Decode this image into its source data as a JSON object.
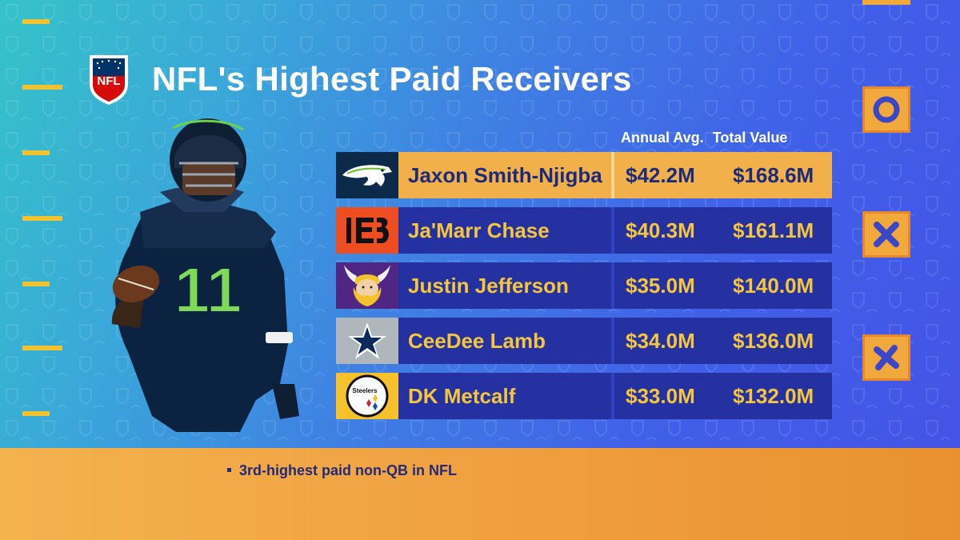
{
  "header": {
    "title": "NFL's Highest Paid Receivers",
    "logo_text": "NFL"
  },
  "columns": {
    "aav": "Annual Avg.",
    "total": "Total Value"
  },
  "rows": [
    {
      "team": "Seahawks",
      "logo_icon": "seahawks-logo-icon",
      "name": "Jaxon Smith-Njigba",
      "aav": "$42.2M",
      "total": "$168.6M",
      "highlight": true
    },
    {
      "team": "Bengals",
      "logo_icon": "bengals-logo-icon",
      "name": "Ja'Marr Chase",
      "aav": "$40.3M",
      "total": "$161.1M",
      "highlight": false
    },
    {
      "team": "Vikings",
      "logo_icon": "vikings-logo-icon",
      "name": "Justin Jefferson",
      "aav": "$35.0M",
      "total": "$140.0M",
      "highlight": false
    },
    {
      "team": "Cowboys",
      "logo_icon": "cowboys-logo-icon",
      "name": "CeeDee Lamb",
      "aav": "$34.0M",
      "total": "$136.0M",
      "highlight": false
    },
    {
      "team": "Steelers",
      "logo_icon": "steelers-logo-icon",
      "name": "DK Metcalf",
      "aav": "$33.0M",
      "total": "$132.0M",
      "highlight": false
    }
  ],
  "player_jersey_number": "11",
  "steelers_logo_text": "Steelers",
  "footer": {
    "bullet": "3rd-highest paid non-QB in NFL"
  },
  "colors": {
    "accent_gold": "#f4c640",
    "row_navy": "#2531a0",
    "highlight_orange": "#f1b04a",
    "seahawks_navy": "#0b2a4a",
    "bengals_orange": "#ee4e1f",
    "vikings_purple": "#4f2683",
    "cowboys_gray": "#b0b7bc",
    "steelers_gold": "#f6c12b"
  }
}
